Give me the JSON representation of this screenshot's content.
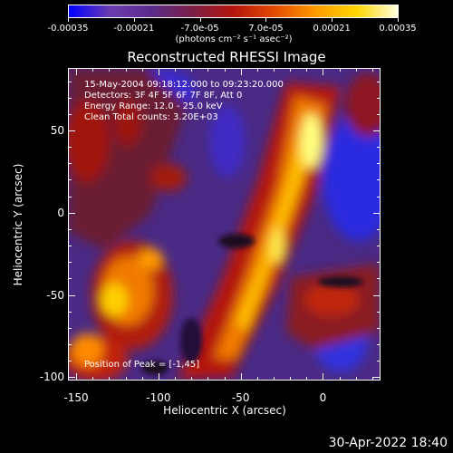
{
  "colorbar": {
    "gradient": [
      "#0000ff",
      "#6a3cb0",
      "#5a2b8c",
      "#7a1f46",
      "#b4150d",
      "#e24a00",
      "#ff9a00",
      "#ffd600",
      "#ffffe0"
    ],
    "tick_labels": [
      "-0.00035",
      "-0.00021",
      "-7.0e-05",
      "7.0e-05",
      "0.00021",
      "0.00035"
    ],
    "unit_label": "(photons cm⁻² s⁻¹ asec⁻²)"
  },
  "title": "Reconstructed RHESSI Image",
  "info_lines": [
    "15-May-2004 09:18:12.000 to 09:23:20.000",
    "Detectors: 3F 4F 5F 6F 7F 8F, Att 0",
    "Energy Range: 12.0 - 25.0 keV",
    "Clean     Total counts: 3.20E+03"
  ],
  "peak_label": "Position of Peak = [-1,45]",
  "axes": {
    "x_label": "Heliocentric X (arcsec)",
    "y_label": "Heliocentric Y (arcsec)",
    "x_ticks": [
      "-150",
      "-100",
      "-50",
      "0"
    ],
    "y_ticks": [
      "50",
      "0",
      "-50",
      "-100"
    ],
    "x_range": [
      -155,
      35
    ],
    "y_range": [
      -102,
      88
    ]
  },
  "timestamp": "30-Apr-2022 18:40"
}
